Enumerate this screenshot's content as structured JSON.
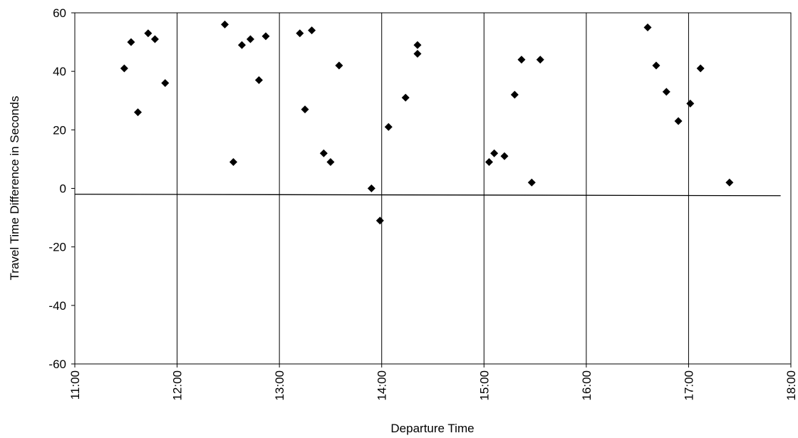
{
  "chart_data": {
    "type": "scatter",
    "title": "",
    "xlabel": "Departure Time",
    "ylabel": "Travel Time Difference in Seconds",
    "xlim": [
      "11:00",
      "18:00"
    ],
    "ylim": [
      -60,
      60
    ],
    "x_ticks": [
      "11:00",
      "12:00",
      "13:00",
      "14:00",
      "15:00",
      "16:00",
      "17:00",
      "18:00"
    ],
    "y_ticks": [
      60,
      40,
      20,
      0,
      -20,
      -40,
      -60
    ],
    "grid": "vertical",
    "legend": "none",
    "marker": "diamond",
    "marker_color": "#000000",
    "trendline": {
      "type": "linear",
      "start": [
        "11:00",
        -2
      ],
      "end": [
        "17:54",
        -2.5
      ]
    },
    "points": [
      {
        "x": "11:29",
        "y": 41
      },
      {
        "x": "11:33",
        "y": 50
      },
      {
        "x": "11:37",
        "y": 26
      },
      {
        "x": "11:43",
        "y": 53
      },
      {
        "x": "11:47",
        "y": 51
      },
      {
        "x": "11:53",
        "y": 36
      },
      {
        "x": "12:28",
        "y": 56
      },
      {
        "x": "12:33",
        "y": 9
      },
      {
        "x": "12:38",
        "y": 49
      },
      {
        "x": "12:43",
        "y": 51
      },
      {
        "x": "12:48",
        "y": 37
      },
      {
        "x": "12:52",
        "y": 52
      },
      {
        "x": "13:12",
        "y": 53
      },
      {
        "x": "13:15",
        "y": 27
      },
      {
        "x": "13:19",
        "y": 54
      },
      {
        "x": "13:26",
        "y": 12
      },
      {
        "x": "13:30",
        "y": 9
      },
      {
        "x": "13:35",
        "y": 42
      },
      {
        "x": "13:54",
        "y": 0
      },
      {
        "x": "13:59",
        "y": -11
      },
      {
        "x": "14:04",
        "y": 21
      },
      {
        "x": "14:14",
        "y": 31
      },
      {
        "x": "14:21",
        "y": 49
      },
      {
        "x": "14:21",
        "y": 46
      },
      {
        "x": "15:03",
        "y": 9
      },
      {
        "x": "15:06",
        "y": 12
      },
      {
        "x": "15:12",
        "y": 11
      },
      {
        "x": "15:18",
        "y": 32
      },
      {
        "x": "15:22",
        "y": 44
      },
      {
        "x": "15:28",
        "y": 2
      },
      {
        "x": "15:33",
        "y": 44
      },
      {
        "x": "16:36",
        "y": 55
      },
      {
        "x": "16:41",
        "y": 42
      },
      {
        "x": "16:47",
        "y": 33
      },
      {
        "x": "16:54",
        "y": 23
      },
      {
        "x": "17:01",
        "y": 29
      },
      {
        "x": "17:07",
        "y": 41
      },
      {
        "x": "17:24",
        "y": 2
      }
    ]
  }
}
